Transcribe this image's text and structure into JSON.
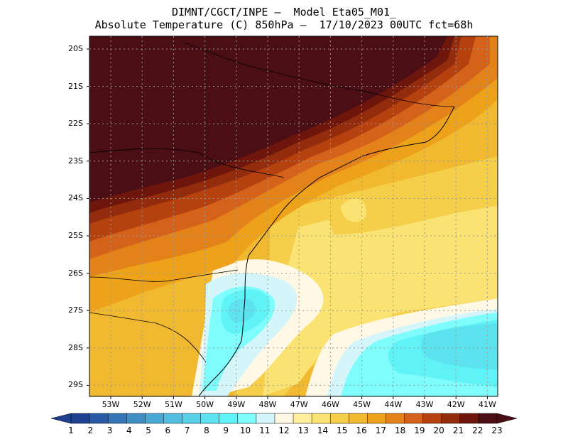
{
  "title": {
    "line1": "DIMNT/CGCT/INPE –  Model Eta05_M01_",
    "line2": "Absolute Temperature (C) 850hPa –  17/10/2023 00UTC fct=68h"
  },
  "map": {
    "lat_labels": [
      "20S",
      "21S",
      "22S",
      "23S",
      "24S",
      "25S",
      "26S",
      "27S",
      "28S",
      "29S"
    ],
    "lon_labels": [
      "53W",
      "52W",
      "51W",
      "50W",
      "49W",
      "48W",
      "47W",
      "46W",
      "45W",
      "44W",
      "43W",
      "42W",
      "41W"
    ]
  },
  "colorbar": {
    "labels": [
      "1",
      "2",
      "3",
      "4",
      "5",
      "6",
      "7",
      "8",
      "9",
      "10",
      "11",
      "12",
      "13",
      "14",
      "15",
      "16",
      "17",
      "18",
      "19",
      "20",
      "21",
      "22",
      "23"
    ],
    "colors": [
      "#1f3f8f",
      "#2a5aa3",
      "#3574b5",
      "#3e8ec4",
      "#4aa8d4",
      "#53bedf",
      "#58d1e8",
      "#5ce3ef",
      "#5ff2f7",
      "#7ffcfc",
      "#d4f6fb",
      "#fff8e4",
      "#ffee9e",
      "#fae273",
      "#f5cf4a",
      "#f1b92f",
      "#eda21a",
      "#e4821a",
      "#d4621a",
      "#b5410f",
      "#922c0c",
      "#6f160c",
      "#4a0e14"
    ]
  }
}
